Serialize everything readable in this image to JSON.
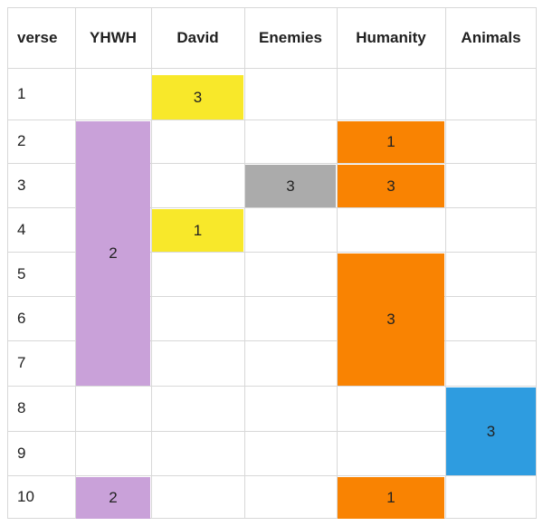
{
  "table": {
    "corner_header": "verse",
    "columns": [
      "YHWH",
      "David",
      "Enemies",
      "Humanity",
      "Animals"
    ],
    "verses": [
      "1",
      "2",
      "3",
      "4",
      "5",
      "6",
      "7",
      "8",
      "9",
      "10"
    ]
  },
  "colors": {
    "background": "#FFFFFF",
    "grid_line": "#D8D8D8",
    "text": "#212121",
    "YHWH": "#C9A1D9",
    "David": "#F8E82A",
    "Enemies": "#ABABAB",
    "Humanity": "#F98302",
    "Animals": "#2E9CE0"
  },
  "chart_data": {
    "type": "heatmap",
    "title": "",
    "x_categories": [
      "YHWH",
      "David",
      "Enemies",
      "Humanity",
      "Animals"
    ],
    "y_axis_label": "verse",
    "y_categories": [
      1,
      2,
      3,
      4,
      5,
      6,
      7,
      8,
      9,
      10
    ],
    "grid": true,
    "legend": "none",
    "cells": [
      {
        "column": "David",
        "verse_start": 1,
        "verse_end": 1,
        "value": 3
      },
      {
        "column": "YHWH",
        "verse_start": 2,
        "verse_end": 7,
        "value": 2
      },
      {
        "column": "Humanity",
        "verse_start": 2,
        "verse_end": 2,
        "value": 1
      },
      {
        "column": "Enemies",
        "verse_start": 3,
        "verse_end": 3,
        "value": 3
      },
      {
        "column": "Humanity",
        "verse_start": 3,
        "verse_end": 3,
        "value": 3
      },
      {
        "column": "David",
        "verse_start": 4,
        "verse_end": 4,
        "value": 1
      },
      {
        "column": "Humanity",
        "verse_start": 5,
        "verse_end": 7,
        "value": 3
      },
      {
        "column": "Animals",
        "verse_start": 8,
        "verse_end": 9,
        "value": 3
      },
      {
        "column": "YHWH",
        "verse_start": 10,
        "verse_end": 10,
        "value": 2
      },
      {
        "column": "Humanity",
        "verse_start": 10,
        "verse_end": 10,
        "value": 1
      }
    ]
  }
}
